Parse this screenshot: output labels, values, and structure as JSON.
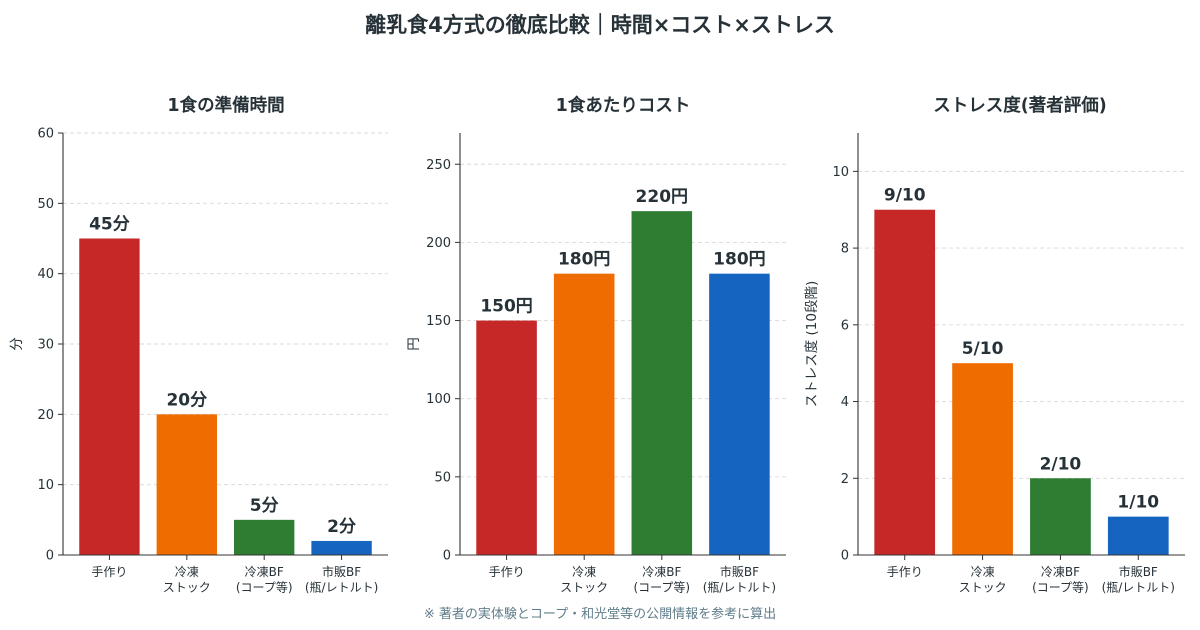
{
  "title": "離乳食4方式の徹底比較｜時間×コスト×ストレス",
  "footnote": "※ 著者の実体験とコープ・和光堂等の公開情報を参考に算出",
  "chart_data": [
    {
      "type": "bar",
      "title": "1食の準備時間",
      "ylabel": "分",
      "ylim": [
        0,
        60
      ],
      "yticks": [
        0,
        10,
        20,
        30,
        40,
        50,
        60
      ],
      "categories": [
        [
          "手作り"
        ],
        [
          "冷凍",
          "ストック"
        ],
        [
          "冷凍BF",
          "(コープ等)"
        ],
        [
          "市販BF",
          "(瓶/レトルト)"
        ]
      ],
      "values": [
        45,
        20,
        5,
        2
      ],
      "labels": [
        "45分",
        "20分",
        "5分",
        "2分"
      ],
      "colors": [
        "#c62828",
        "#ef6c00",
        "#2e7d32",
        "#1565c0"
      ],
      "grid": "horizontal-dashed"
    },
    {
      "type": "bar",
      "title": "1食あたりコスト",
      "ylabel": "円",
      "ylim": [
        0,
        270
      ],
      "yticks": [
        0,
        50,
        100,
        150,
        200,
        250
      ],
      "categories": [
        [
          "手作り"
        ],
        [
          "冷凍",
          "ストック"
        ],
        [
          "冷凍BF",
          "(コープ等)"
        ],
        [
          "市販BF",
          "(瓶/レトルト)"
        ]
      ],
      "values": [
        150,
        180,
        220,
        180
      ],
      "labels": [
        "150円",
        "180円",
        "220円",
        "180円"
      ],
      "colors": [
        "#c62828",
        "#ef6c00",
        "#2e7d32",
        "#1565c0"
      ],
      "grid": "horizontal-dashed"
    },
    {
      "type": "bar",
      "title": "ストレス度(著者評価)",
      "ylabel": "ストレス度 (10段階)",
      "ylim": [
        0,
        11
      ],
      "yticks": [
        0,
        2,
        4,
        6,
        8,
        10
      ],
      "categories": [
        [
          "手作り"
        ],
        [
          "冷凍",
          "ストック"
        ],
        [
          "冷凍BF",
          "(コープ等)"
        ],
        [
          "市販BF",
          "(瓶/レトルト)"
        ]
      ],
      "values": [
        9,
        5,
        2,
        1
      ],
      "labels": [
        "9/10",
        "5/10",
        "2/10",
        "1/10"
      ],
      "colors": [
        "#c62828",
        "#ef6c00",
        "#2e7d32",
        "#1565c0"
      ],
      "grid": "horizontal-dashed"
    }
  ]
}
